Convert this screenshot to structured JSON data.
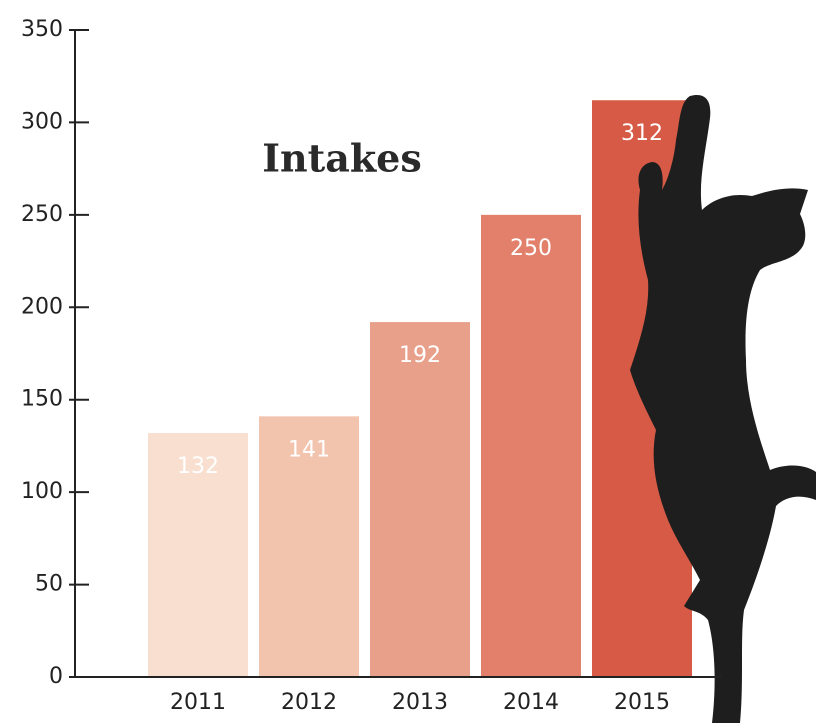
{
  "chart_data": {
    "type": "bar",
    "title": "Intakes",
    "categories": [
      "2011",
      "2012",
      "2013",
      "2014",
      "2015"
    ],
    "values": [
      132,
      141,
      192,
      250,
      312
    ],
    "colors": [
      "#f8dfcf",
      "#f2c3ad",
      "#e9a08a",
      "#e2806c",
      "#d65a45"
    ],
    "ylim": [
      0,
      350
    ],
    "yticks": [
      0,
      50,
      100,
      150,
      200,
      250,
      300,
      350
    ],
    "grid": false
  }
}
